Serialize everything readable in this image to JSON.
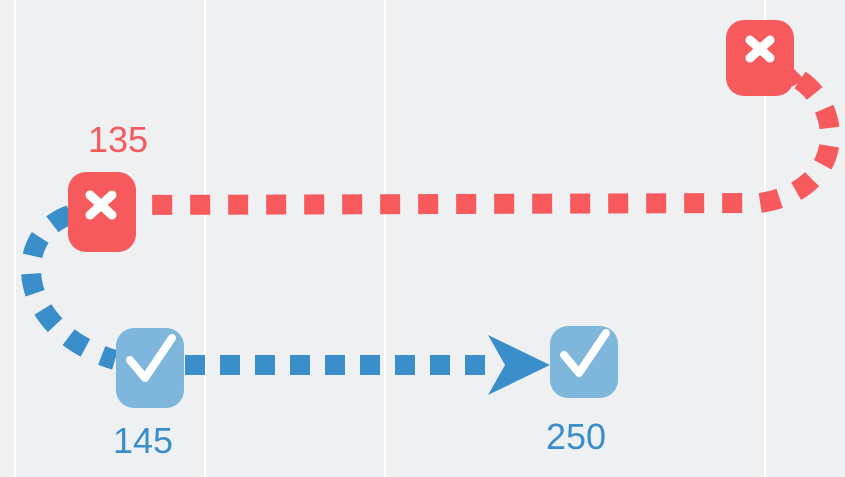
{
  "nodes": [
    {
      "label": "135"
    },
    {
      "label": "145"
    },
    {
      "label": "250"
    }
  ]
}
